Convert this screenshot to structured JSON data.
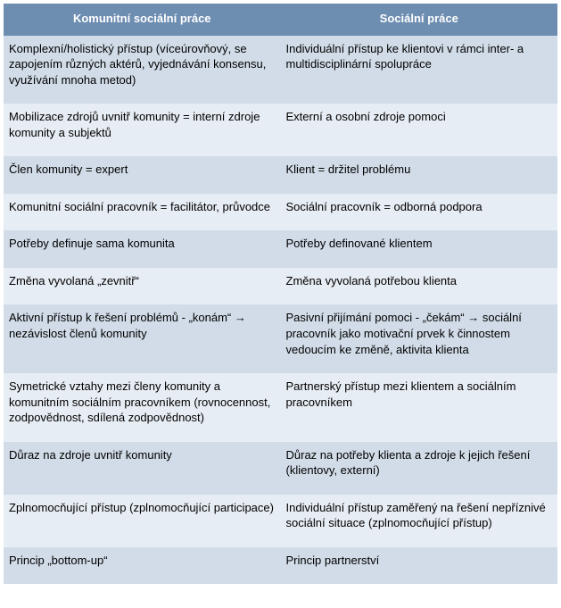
{
  "table": {
    "columns": [
      "Komunitní sociální práce",
      "Sociální práce"
    ],
    "header_bg": "#6d8db1",
    "header_text_color": "#ffffff",
    "row_colors": [
      "#d1dce8",
      "#e7edf4"
    ],
    "font_family": "Arial",
    "font_size_pt": 10,
    "rows": [
      {
        "left": "Komplexní/holistický přístup (víceúrovňový, se zapojením různých aktérů, vyjednávání konsensu, využívání mnoha metod)",
        "right": "Individuální přístup ke klientovi v rámci inter- a multidisciplinární spolupráce"
      },
      {
        "left": "Mobilizace zdrojů uvnitř komunity = interní zdroje komunity a subjektů",
        "right": "Externí a osobní zdroje pomoci"
      },
      {
        "left": "Člen komunity = expert",
        "right": "Klient = držitel problému"
      },
      {
        "left": "Komunitní sociální pracovník = facilitátor, průvodce",
        "right": "Sociální pracovník = odborná podpora"
      },
      {
        "left": "Potřeby definuje sama komunita",
        "right": "Potřeby definované klientem"
      },
      {
        "left": "Změna vyvolaná „zevnitř“",
        "right": "Změna vyvolaná potřebou klienta"
      },
      {
        "left": "Aktivní přístup k řešení problémů - „konám“ → nezávislost členů komunity",
        "right": "Pasivní přijímání pomoci - „čekám“ → sociální pracovník jako motivační prvek k činnostem vedoucím ke změně, aktivita klienta"
      },
      {
        "left": "Symetrické vztahy mezi členy komunity a komunitním sociálním pracovníkem (rovnocennost, zodpovědnost, sdílená zodpovědnost)",
        "right": "Partnerský přístup mezi klientem a sociálním pracovníkem"
      },
      {
        "left": "Důraz na zdroje uvnitř komunity",
        "right": "Důraz na potřeby klienta a zdroje k jejich řešení (klientovy, externí)"
      },
      {
        "left": "Zplnomocňující přístup (zplnomocňující participace)",
        "right": "Individuální přístup zaměřený na řešení nepříznivé sociální situace (zplnomocňující přístup)"
      },
      {
        "left": "Princip „bottom-up“",
        "right": "Princip partnerství"
      }
    ]
  }
}
